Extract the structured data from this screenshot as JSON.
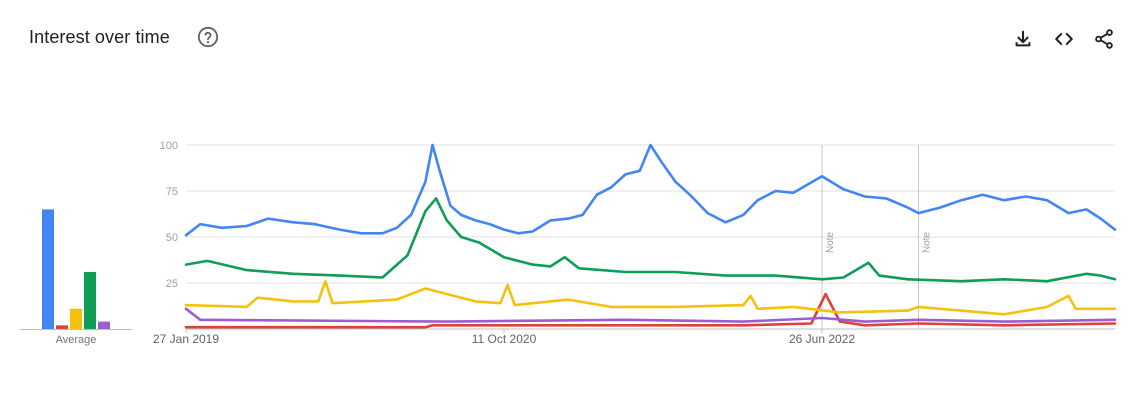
{
  "header": {
    "title": "Interest over time",
    "help_icon": "help-circle-icon",
    "actions": [
      "download-icon",
      "embed-code-icon",
      "share-icon"
    ]
  },
  "average": {
    "label": "Average",
    "values": [
      65,
      2,
      11,
      31,
      4
    ]
  },
  "notes": [
    {
      "label": "Note",
      "date": "2022-06-26"
    },
    {
      "label": "Note",
      "date": "2023-01-01"
    }
  ],
  "chart_data": {
    "type": "line",
    "x_start": "2019-01-27",
    "x_end": "2024-01-21",
    "x_ticks": [
      "27 Jan 2019",
      "11 Oct 2020",
      "26 Jun 2022"
    ],
    "y_ticks": [
      25,
      50,
      75,
      100
    ],
    "ylim": [
      0,
      100
    ],
    "grid": true,
    "series": [
      {
        "color": "#4285f4",
        "points": [
          [
            "2019-01-27",
            51
          ],
          [
            "2019-02-24",
            57
          ],
          [
            "2019-04-07",
            55
          ],
          [
            "2019-05-26",
            56
          ],
          [
            "2019-07-07",
            60
          ],
          [
            "2019-08-25",
            58
          ],
          [
            "2019-10-06",
            57
          ],
          [
            "2019-11-24",
            54
          ],
          [
            "2020-01-05",
            52
          ],
          [
            "2020-02-16",
            52
          ],
          [
            "2020-03-15",
            55
          ],
          [
            "2020-04-12",
            62
          ],
          [
            "2020-05-10",
            80
          ],
          [
            "2020-05-24",
            100
          ],
          [
            "2020-06-07",
            86
          ],
          [
            "2020-06-28",
            67
          ],
          [
            "2020-07-19",
            62
          ],
          [
            "2020-08-16",
            59
          ],
          [
            "2020-09-13",
            57
          ],
          [
            "2020-10-11",
            54
          ],
          [
            "2020-11-08",
            52
          ],
          [
            "2020-12-06",
            53
          ],
          [
            "2021-01-10",
            59
          ],
          [
            "2021-02-14",
            60
          ],
          [
            "2021-03-14",
            62
          ],
          [
            "2021-04-11",
            73
          ],
          [
            "2021-05-09",
            77
          ],
          [
            "2021-06-06",
            84
          ],
          [
            "2021-07-04",
            86
          ],
          [
            "2021-07-25",
            100
          ],
          [
            "2021-08-15",
            91
          ],
          [
            "2021-09-12",
            80
          ],
          [
            "2021-10-10",
            73
          ],
          [
            "2021-11-14",
            63
          ],
          [
            "2021-12-19",
            58
          ],
          [
            "2022-01-23",
            62
          ],
          [
            "2022-02-20",
            70
          ],
          [
            "2022-03-27",
            75
          ],
          [
            "2022-05-01",
            74
          ],
          [
            "2022-06-26",
            83
          ],
          [
            "2022-08-07",
            76
          ],
          [
            "2022-09-18",
            72
          ],
          [
            "2022-10-30",
            71
          ],
          [
            "2022-12-11",
            66
          ],
          [
            "2023-01-01",
            63
          ],
          [
            "2023-02-12",
            66
          ],
          [
            "2023-03-26",
            70
          ],
          [
            "2023-05-07",
            73
          ],
          [
            "2023-06-18",
            70
          ],
          [
            "2023-07-30",
            72
          ],
          [
            "2023-09-10",
            70
          ],
          [
            "2023-10-22",
            63
          ],
          [
            "2023-11-26",
            65
          ],
          [
            "2023-12-24",
            60
          ],
          [
            "2024-01-21",
            54
          ]
        ]
      },
      {
        "color": "#db4437",
        "points": [
          [
            "2019-01-27",
            1
          ],
          [
            "2020-05-10",
            1
          ],
          [
            "2020-05-24",
            2
          ],
          [
            "2021-06-06",
            2
          ],
          [
            "2022-01-23",
            2
          ],
          [
            "2022-06-05",
            3
          ],
          [
            "2022-07-03",
            19
          ],
          [
            "2022-07-31",
            4
          ],
          [
            "2022-09-18",
            2
          ],
          [
            "2023-01-01",
            3
          ],
          [
            "2023-06-18",
            2
          ],
          [
            "2024-01-21",
            3
          ]
        ]
      },
      {
        "color": "#f4c20d",
        "points": [
          [
            "2019-01-27",
            13
          ],
          [
            "2019-05-26",
            12
          ],
          [
            "2019-06-16",
            17
          ],
          [
            "2019-08-25",
            15
          ],
          [
            "2019-10-13",
            15
          ],
          [
            "2019-10-27",
            26
          ],
          [
            "2019-11-10",
            14
          ],
          [
            "2020-03-15",
            16
          ],
          [
            "2020-05-10",
            22
          ],
          [
            "2020-06-21",
            19
          ],
          [
            "2020-08-16",
            15
          ],
          [
            "2020-10-04",
            14
          ],
          [
            "2020-10-18",
            24
          ],
          [
            "2020-11-01",
            13
          ],
          [
            "2021-02-14",
            16
          ],
          [
            "2021-05-09",
            12
          ],
          [
            "2021-09-12",
            12
          ],
          [
            "2022-01-23",
            13
          ],
          [
            "2022-02-06",
            18
          ],
          [
            "2022-02-20",
            11
          ],
          [
            "2022-05-01",
            12
          ],
          [
            "2022-07-31",
            9
          ],
          [
            "2022-12-11",
            10
          ],
          [
            "2023-01-01",
            12
          ],
          [
            "2023-06-18",
            8
          ],
          [
            "2023-09-10",
            12
          ],
          [
            "2023-10-22",
            18
          ],
          [
            "2023-11-05",
            11
          ],
          [
            "2024-01-21",
            11
          ]
        ]
      },
      {
        "color": "#0f9d58",
        "points": [
          [
            "2019-01-27",
            35
          ],
          [
            "2019-03-10",
            37
          ],
          [
            "2019-05-26",
            32
          ],
          [
            "2019-08-25",
            30
          ],
          [
            "2019-11-24",
            29
          ],
          [
            "2020-02-16",
            28
          ],
          [
            "2020-04-05",
            40
          ],
          [
            "2020-05-10",
            64
          ],
          [
            "2020-05-31",
            71
          ],
          [
            "2020-06-21",
            59
          ],
          [
            "2020-07-19",
            50
          ],
          [
            "2020-08-23",
            47
          ],
          [
            "2020-10-11",
            39
          ],
          [
            "2020-12-06",
            35
          ],
          [
            "2021-01-10",
            34
          ],
          [
            "2021-02-07",
            39
          ],
          [
            "2021-03-07",
            33
          ],
          [
            "2021-06-06",
            31
          ],
          [
            "2021-09-12",
            31
          ],
          [
            "2021-12-19",
            29
          ],
          [
            "2022-03-27",
            29
          ],
          [
            "2022-06-26",
            27
          ],
          [
            "2022-08-07",
            28
          ],
          [
            "2022-09-25",
            36
          ],
          [
            "2022-10-16",
            29
          ],
          [
            "2022-12-11",
            27
          ],
          [
            "2023-03-26",
            26
          ],
          [
            "2023-06-18",
            27
          ],
          [
            "2023-09-10",
            26
          ],
          [
            "2023-11-26",
            30
          ],
          [
            "2023-12-24",
            29
          ],
          [
            "2024-01-21",
            27
          ]
        ]
      },
      {
        "color": "#9c5dd1",
        "points": [
          [
            "2019-01-27",
            11
          ],
          [
            "2019-02-24",
            5
          ],
          [
            "2020-06-21",
            4
          ],
          [
            "2021-06-06",
            5
          ],
          [
            "2022-01-23",
            4
          ],
          [
            "2022-06-26",
            6
          ],
          [
            "2022-09-18",
            4
          ],
          [
            "2023-01-01",
            5
          ],
          [
            "2023-06-18",
            4
          ],
          [
            "2024-01-21",
            5
          ]
        ]
      }
    ]
  }
}
